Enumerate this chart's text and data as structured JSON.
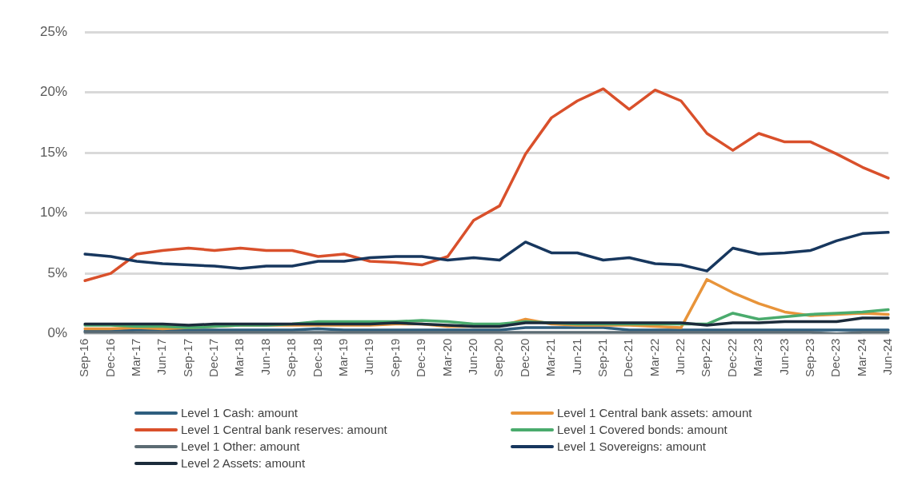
{
  "chart_data": {
    "type": "line",
    "categories": [
      "Sep-16",
      "Dec-16",
      "Mar-17",
      "Jun-17",
      "Sep-17",
      "Dec-17",
      "Mar-18",
      "Jun-18",
      "Sep-18",
      "Dec-18",
      "Mar-19",
      "Jun-19",
      "Sep-19",
      "Dec-19",
      "Mar-20",
      "Jun-20",
      "Sep-20",
      "Dec-20",
      "Mar-21",
      "Jun-21",
      "Sep-21",
      "Dec-21",
      "Mar-22",
      "Jun-22",
      "Sep-22",
      "Dec-22",
      "Mar-23",
      "Jun-23",
      "Sep-23",
      "Dec-23",
      "Mar-24",
      "Jun-24"
    ],
    "series": [
      {
        "name": "Level 1 Cash: amount",
        "color": "#2e5e7e",
        "values": [
          0.2,
          0.2,
          0.3,
          0.3,
          0.3,
          0.3,
          0.3,
          0.3,
          0.3,
          0.4,
          0.3,
          0.3,
          0.3,
          0.3,
          0.3,
          0.3,
          0.3,
          0.5,
          0.5,
          0.5,
          0.5,
          0.3,
          0.3,
          0.3,
          0.3,
          0.3,
          0.3,
          0.3,
          0.3,
          0.3,
          0.3,
          0.3
        ]
      },
      {
        "name": "Level 1 Central bank assets: amount",
        "color": "#e8943a",
        "values": [
          0.4,
          0.4,
          0.5,
          0.4,
          0.5,
          0.6,
          0.7,
          0.7,
          0.7,
          0.7,
          0.7,
          0.7,
          0.8,
          0.8,
          0.6,
          0.6,
          0.6,
          1.2,
          0.8,
          0.7,
          0.7,
          0.7,
          0.6,
          0.5,
          4.5,
          3.4,
          2.5,
          1.8,
          1.5,
          1.6,
          1.7,
          1.6
        ]
      },
      {
        "name": "Level 1 Central bank reserves: amount",
        "color": "#d9502b",
        "values": [
          4.4,
          5.0,
          6.6,
          6.9,
          7.1,
          6.9,
          7.1,
          6.9,
          6.9,
          6.4,
          6.6,
          6.0,
          5.9,
          5.7,
          6.4,
          9.4,
          10.6,
          14.9,
          17.9,
          19.3,
          20.3,
          18.6,
          20.2,
          19.3,
          16.6,
          15.2,
          16.6,
          15.9,
          15.9,
          14.9,
          13.8,
          12.9
        ]
      },
      {
        "name": "Level 1 Covered bonds: amount",
        "color": "#4aab6d",
        "values": [
          0.7,
          0.7,
          0.6,
          0.6,
          0.5,
          0.6,
          0.7,
          0.7,
          0.8,
          1.0,
          1.0,
          1.0,
          1.0,
          1.1,
          1.0,
          0.8,
          0.8,
          1.0,
          0.9,
          0.8,
          0.8,
          0.8,
          0.8,
          0.8,
          0.8,
          1.7,
          1.2,
          1.4,
          1.6,
          1.7,
          1.8,
          2.0
        ]
      },
      {
        "name": "Level 1 Other:  amount",
        "color": "#5b6b73",
        "values": [
          0.1,
          0.1,
          0.1,
          0.1,
          0.1,
          0.1,
          0.1,
          0.1,
          0.1,
          0.1,
          0.1,
          0.1,
          0.1,
          0.1,
          0.1,
          0.1,
          0.1,
          0.1,
          0.1,
          0.1,
          0.1,
          0.1,
          0.1,
          0.1,
          0.1,
          0.1,
          0.1,
          0.1,
          0.1,
          0.0,
          0.1,
          0.1
        ]
      },
      {
        "name": "Level 1 Sovereigns: amount",
        "color": "#17375e",
        "values": [
          6.6,
          6.4,
          6.0,
          5.8,
          5.7,
          5.6,
          5.4,
          5.6,
          5.6,
          6.0,
          6.0,
          6.3,
          6.4,
          6.4,
          6.1,
          6.3,
          6.1,
          7.6,
          6.7,
          6.7,
          6.1,
          6.3,
          5.8,
          5.7,
          5.2,
          7.1,
          6.6,
          6.7,
          6.9,
          7.7,
          8.3,
          8.4
        ]
      },
      {
        "name": "Level 2 Assets:  amount",
        "color": "#1b2b3b",
        "values": [
          0.8,
          0.8,
          0.8,
          0.8,
          0.7,
          0.8,
          0.8,
          0.8,
          0.8,
          0.8,
          0.8,
          0.8,
          0.9,
          0.8,
          0.7,
          0.6,
          0.6,
          0.9,
          0.9,
          0.9,
          0.9,
          0.9,
          0.9,
          0.9,
          0.7,
          0.9,
          0.9,
          1.0,
          1.0,
          1.0,
          1.3,
          1.3
        ]
      }
    ],
    "ylim": [
      0,
      25
    ],
    "yticks": [
      {
        "value": 0,
        "label": "0%"
      },
      {
        "value": 5,
        "label": "5%"
      },
      {
        "value": 10,
        "label": "10%"
      },
      {
        "value": 15,
        "label": "15%"
      },
      {
        "value": 20,
        "label": "20%"
      },
      {
        "value": 25,
        "label": "25%"
      }
    ],
    "grid": "y",
    "legend": "bottom",
    "marker": "none",
    "line_style": "solid"
  }
}
